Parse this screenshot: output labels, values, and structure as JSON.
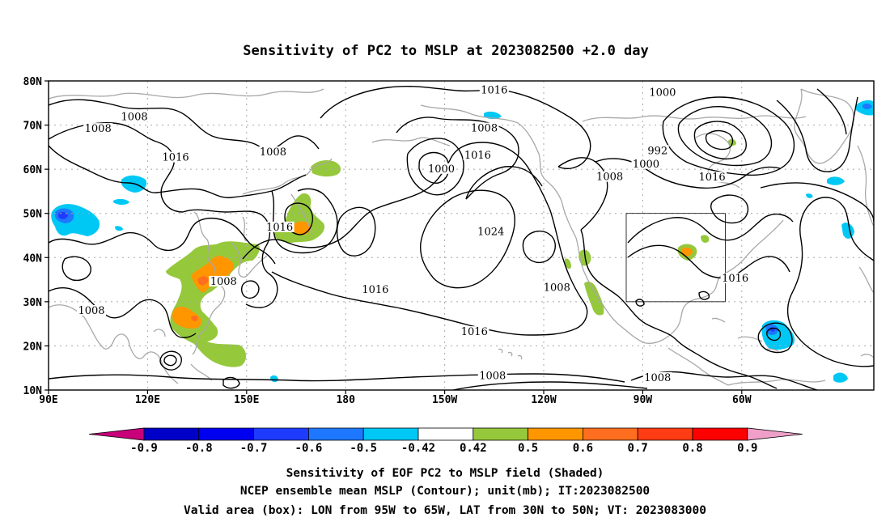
{
  "title": "Sensitivity of PC2 to MSLP at 2023082500 +2.0 day",
  "lat_labels": [
    "80N",
    "70N",
    "60N",
    "50N",
    "40N",
    "30N",
    "20N",
    "10N"
  ],
  "lon_labels": [
    "90E",
    "120E",
    "150E",
    "180",
    "150W",
    "120W",
    "90W",
    "60W"
  ],
  "contour_labels": [
    {
      "text": "1008",
      "lon": 116,
      "lat": 71.5
    },
    {
      "text": "1008",
      "lon": 105,
      "lat": 68.8
    },
    {
      "text": "1016",
      "lon": 128.5,
      "lat": 62.3
    },
    {
      "text": "1008",
      "lon": 158,
      "lat": 63.5
    },
    {
      "text": "1016",
      "lon": 225,
      "lat": 77.5
    },
    {
      "text": "1008",
      "lon": 222,
      "lat": 68.9
    },
    {
      "text": "1000",
      "lon": 209,
      "lat": 59.7
    },
    {
      "text": "1016",
      "lon": 220,
      "lat": 62.8
    },
    {
      "text": "1024",
      "lon": 224,
      "lat": 45.5
    },
    {
      "text": "1016",
      "lon": 160,
      "lat": 46.5
    },
    {
      "text": "1016",
      "lon": 189,
      "lat": 32.4
    },
    {
      "text": "1016",
      "lon": 219,
      "lat": 22.8
    },
    {
      "text": "1008",
      "lon": 143,
      "lat": 34.2
    },
    {
      "text": "1008",
      "lon": 103,
      "lat": 27.6
    },
    {
      "text": "1008",
      "lon": 244,
      "lat": 32.8
    },
    {
      "text": "1008",
      "lon": 224.5,
      "lat": 12.8
    },
    {
      "text": "1000",
      "lon": 276,
      "lat": 77.0
    },
    {
      "text": "992",
      "lon": 274.5,
      "lat": 63.8
    },
    {
      "text": "1000",
      "lon": 271,
      "lat": 60.8
    },
    {
      "text": "1008",
      "lon": 260,
      "lat": 57.9
    },
    {
      "text": "1016",
      "lon": 291,
      "lat": 57.8
    },
    {
      "text": "1016",
      "lon": 298,
      "lat": 34.9
    },
    {
      "text": "1008",
      "lon": 274.5,
      "lat": 12.4
    }
  ],
  "valid_box": {
    "lon_min": 265,
    "lon_max": 295,
    "lat_min": 30,
    "lat_max": 50
  },
  "colorbar": {
    "tick_labels": [
      "-0.9",
      "-0.8",
      "-0.7",
      "-0.6",
      "-0.5",
      "-0.42",
      "0.42",
      "0.5",
      "0.6",
      "0.7",
      "0.8",
      "0.9"
    ],
    "colors": {
      "lt_-0.9": "#c8007a",
      "-0.9_-0.8": "#0000c8",
      "-0.8_-0.7": "#0000f0",
      "-0.7_-0.6": "#1e3cff",
      "-0.6_-0.5": "#1e78ff",
      "-0.5_-0.42": "#00c8f5",
      "-0.42_0.42": "#ffffff",
      "0.42_0.5": "#96c83c",
      "0.5_0.6": "#ff9600",
      "0.6_0.7": "#ff6e1e",
      "0.7_0.8": "#ff3c14",
      "0.8_0.9": "#ff0000",
      "gt_0.9": "#f0a0c8"
    }
  },
  "captions": [
    "Sensitivity of EOF PC2 to MSLP field (Shaded)",
    "NCEP ensemble mean MSLP (Contour); unit(mb); IT:2023082500",
    "Valid area (box): LON from 95W to 65W, LAT from 30N to 50N; VT: 2023083000"
  ]
}
